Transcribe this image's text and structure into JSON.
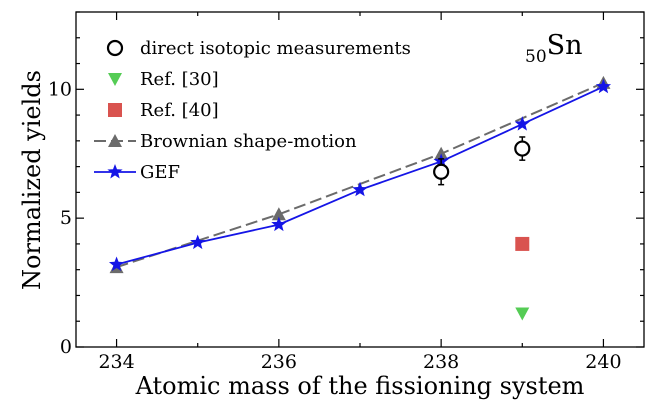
{
  "chart_data": {
    "type": "line",
    "xlabel": "Atomic mass of the fissioning system",
    "ylabel": "Normalized yields",
    "xlim": [
      233.5,
      240.5
    ],
    "ylim": [
      0,
      13
    ],
    "x_ticks": [
      234,
      236,
      238,
      240
    ],
    "y_ticks": [
      0,
      5,
      10
    ],
    "x_tick_labels": [
      "234",
      "236",
      "238",
      "240"
    ],
    "y_tick_labels": [
      "0",
      "5",
      "10"
    ],
    "grid": false,
    "legend_position": "top-left",
    "annotation": {
      "mass_number": "50",
      "element": "Sn"
    },
    "series": [
      {
        "name": "direct isotopic measurements",
        "marker": "open-circle",
        "line": "none",
        "color": "#000000",
        "x": [
          238,
          239
        ],
        "y": [
          6.8,
          7.7
        ],
        "yerr": [
          0.5,
          0.45
        ]
      },
      {
        "name": "Ref. [30]",
        "marker": "triangle-down",
        "line": "none",
        "color": "#55cc55",
        "x": [
          239
        ],
        "y": [
          1.3
        ]
      },
      {
        "name": "Ref. [40]",
        "marker": "square",
        "line": "none",
        "color": "#d9534f",
        "x": [
          239
        ],
        "y": [
          4.0
        ]
      },
      {
        "name": "Brownian shape-motion",
        "marker": "triangle-up",
        "line": "dashed",
        "color": "#6b6b6b",
        "x": [
          234,
          236,
          238,
          240
        ],
        "y": [
          3.1,
          5.15,
          7.5,
          10.25
        ]
      },
      {
        "name": "GEF",
        "marker": "star",
        "line": "solid",
        "color": "#1515e6",
        "x": [
          234,
          235,
          236,
          237,
          238,
          239,
          240
        ],
        "y": [
          3.2,
          4.05,
          4.75,
          6.1,
          7.2,
          8.65,
          10.1
        ]
      }
    ]
  }
}
